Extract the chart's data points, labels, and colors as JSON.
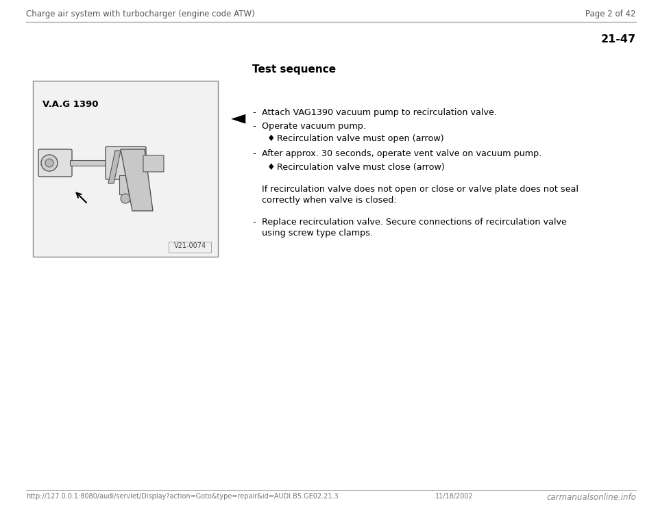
{
  "header_left": "Charge air system with turbocharger (engine code ATW)",
  "header_right": "Page 2 of 42",
  "page_number": "21-47",
  "section_title": "Test sequence",
  "bullet_arrow_char": "◄",
  "items": [
    {
      "indent": 1,
      "type": "dash",
      "text": "Attach VAG1390 vacuum pump to recirculation valve."
    },
    {
      "indent": 1,
      "type": "dash",
      "text": "Operate vacuum pump."
    },
    {
      "indent": 2,
      "type": "diamond",
      "text": "Recirculation valve must open (arrow)"
    },
    {
      "indent": 1,
      "type": "dash",
      "text": "After approx. 30 seconds, operate vent valve on vacuum pump."
    },
    {
      "indent": 2,
      "type": "diamond",
      "text": "Recirculation valve must close (arrow)"
    }
  ],
  "conditional_text_line1": "If recirculation valve does not open or close or valve plate does not seal",
  "conditional_text_line2": "correctly when valve is closed:",
  "conditional_item_line1": "-  Replace recirculation valve. Secure connections of recirculation valve",
  "conditional_item_line2": "    using screw type clamps.",
  "footer_url": "http://127.0.0.1:8080/audi/servlet/Display?action=Goto&type=repair&id=AUDI.B5.GE02.21.3",
  "footer_date": "11/18/2002",
  "footer_brand": "carmanualsonline.info",
  "image_label": "V21-0074",
  "image_vag": "V.A.G 1390",
  "bg_color": "#ffffff",
  "text_color": "#000000",
  "header_color": "#555555",
  "line_color": "#aaaaaa",
  "title_fontsize": 10,
  "body_fontsize": 9.2,
  "header_fontsize": 8.5,
  "footer_fontsize": 7.0,
  "pagenr_fontsize": 11.5
}
